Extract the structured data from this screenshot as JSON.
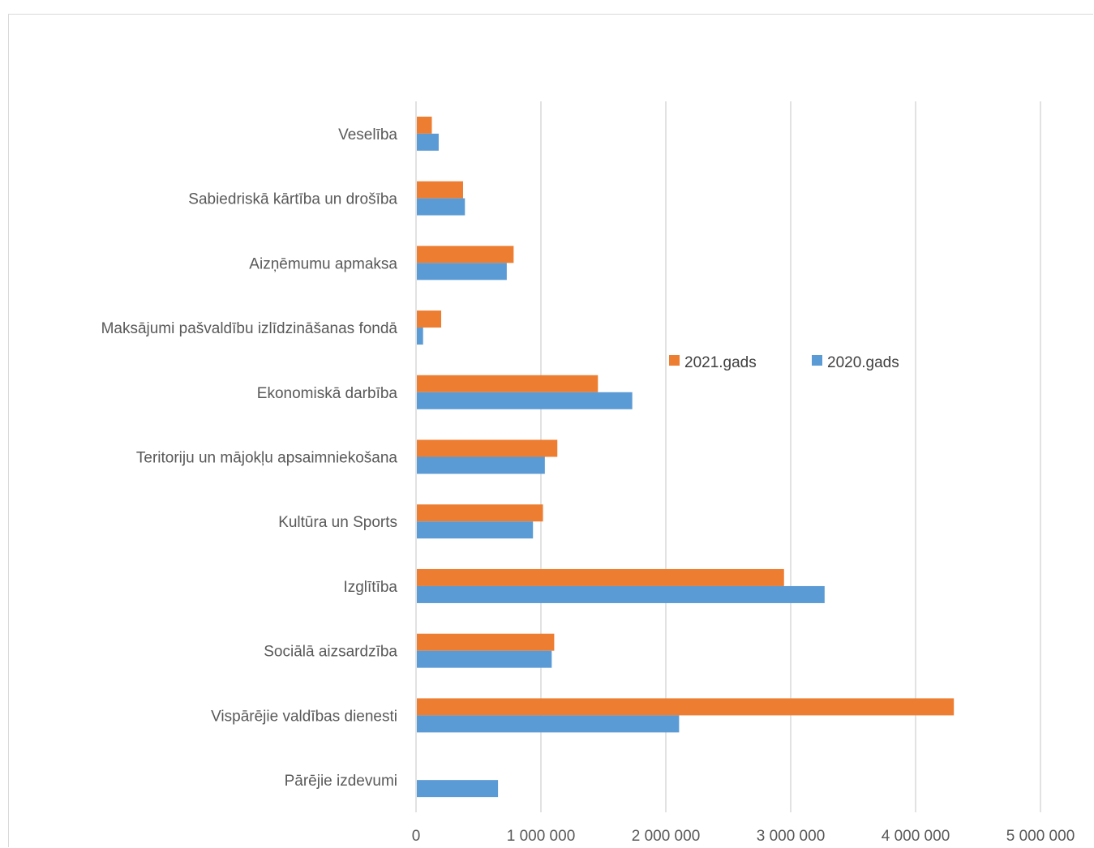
{
  "chart_data": {
    "type": "bar",
    "orientation": "horizontal",
    "categories": [
      "Veselība",
      "Sabiedriskā kārtība un drošība",
      "Aizņēmumu apmaksa",
      "Maksājumi pašvaldību izlīdzināšanas fondā",
      "Ekonomiskā darbība",
      "Teritoriju un mājokļu apsaimniekošana",
      "Kultūra un Sports",
      "Izglītība",
      "Sociālā aizsardzība",
      "Vispārējie valdības dienesti",
      "Pārējie izdevumi"
    ],
    "series": [
      {
        "name": "2021.gads",
        "color": "#ED7D31",
        "values": [
          120000,
          370000,
          775000,
          195000,
          1450000,
          1125000,
          1010000,
          2940000,
          1100000,
          4300000,
          0
        ]
      },
      {
        "name": "2020.gads",
        "color": "#5B9BD5",
        "values": [
          175000,
          385000,
          720000,
          50000,
          1725000,
          1025000,
          930000,
          3265000,
          1080000,
          2100000,
          650000
        ]
      }
    ],
    "xlim": [
      0,
      5000000
    ],
    "x_ticks": [
      "0",
      "1 000 000",
      "2 000 000",
      "3 000 000",
      "4 000 000",
      "5 000 000"
    ],
    "title": "",
    "xlabel": "",
    "ylabel": "",
    "grid": "vertical",
    "legend_position": "center-right"
  }
}
